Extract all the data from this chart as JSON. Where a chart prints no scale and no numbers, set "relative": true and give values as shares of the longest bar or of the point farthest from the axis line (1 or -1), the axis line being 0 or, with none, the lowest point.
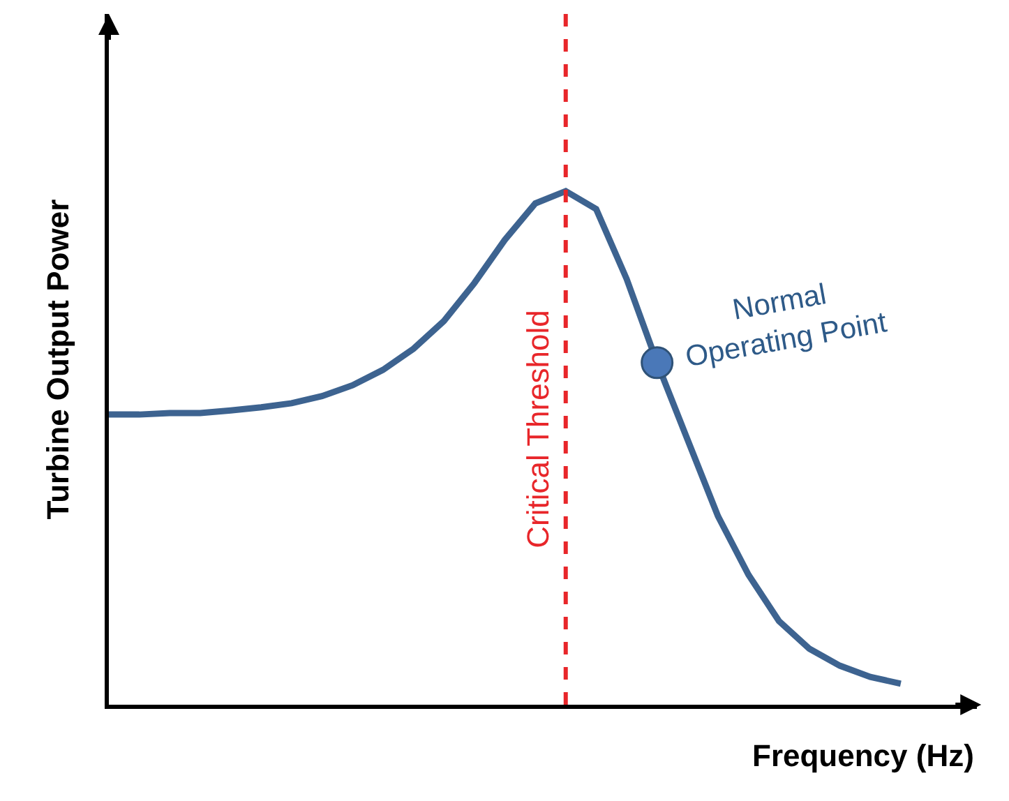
{
  "chart_data": {
    "type": "line",
    "relative": true,
    "xlabel": "Frequency (Hz)",
    "ylabel": "Turbine Output Power",
    "categories": [
      null,
      null,
      null,
      null,
      null,
      null,
      null,
      null,
      null,
      null,
      null,
      null,
      null,
      null,
      null,
      null,
      null,
      null,
      null,
      null,
      null,
      null,
      null,
      null,
      null,
      null,
      null
    ],
    "series": [
      {
        "color": "#3d6390",
        "values": [
          0.565,
          0.565,
          0.568,
          0.568,
          0.573,
          0.579,
          0.587,
          0.601,
          0.622,
          0.652,
          0.693,
          0.747,
          0.821,
          0.905,
          0.976,
          1,
          0.965,
          0.829,
          0.666,
          0.516,
          0.367,
          0.253,
          0.163,
          0.109,
          0.076,
          0.054,
          0.041
        ]
      }
    ],
    "annotations": [
      "Normal Operating Point",
      "Critical Threshold"
    ],
    "tick_labels": false
  }
}
